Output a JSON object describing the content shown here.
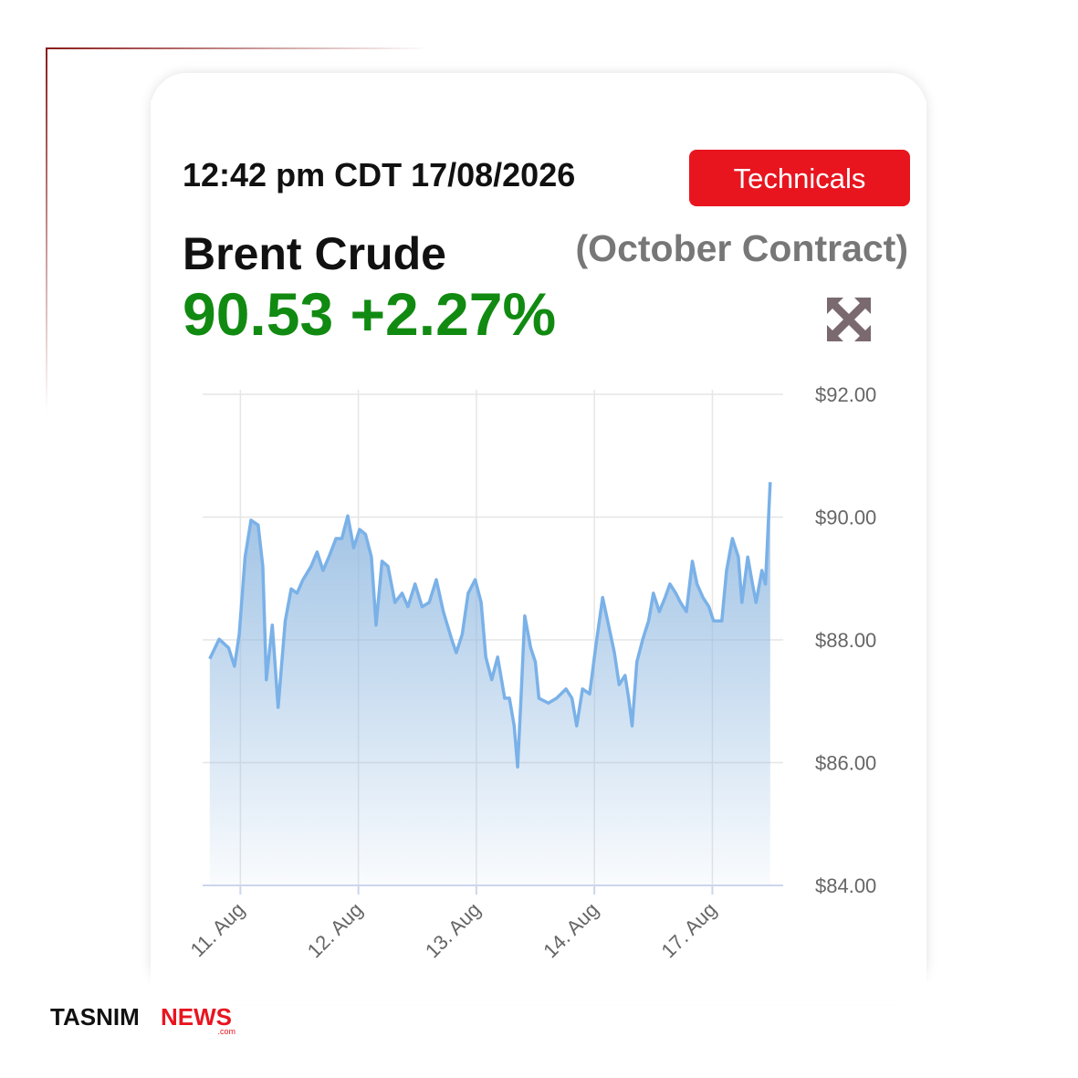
{
  "widget": {
    "timestamp": "12:42 pm CDT 17/08/2026",
    "button": "Technicals",
    "instrument": "Brent Crude",
    "contract": "(October Contract)",
    "price": "90.53",
    "change": "+2.27%"
  },
  "logo": {
    "brand": "TASNIM",
    "news": "NEWS",
    "domain": ".com"
  },
  "chart_data": {
    "type": "area",
    "color": "#7ab1e8",
    "grid": true,
    "x": [
      -0.26,
      -0.18,
      -0.1,
      -0.05,
      -0.01,
      0.04,
      0.09,
      0.15,
      0.19,
      0.22,
      0.27,
      0.32,
      0.38,
      0.43,
      0.48,
      0.53,
      0.6,
      0.65,
      0.7,
      0.75,
      0.81,
      0.86,
      0.91,
      0.96,
      1.01,
      1.06,
      1.11,
      1.15,
      1.2,
      1.25,
      1.31,
      1.37,
      1.42,
      1.48,
      1.54,
      1.6,
      1.66,
      1.72,
      1.79,
      1.83,
      1.88,
      1.93,
      1.99,
      2.04,
      2.08,
      2.13,
      2.18,
      2.24,
      2.28,
      2.32,
      2.35,
      2.38,
      2.41,
      2.46,
      2.5,
      2.53,
      2.61,
      2.68,
      2.76,
      2.81,
      2.85,
      2.9,
      2.96,
      3.01,
      3.07,
      3.12,
      3.17,
      3.21,
      3.26,
      3.29,
      3.32,
      3.36,
      3.41,
      3.46,
      3.5,
      3.55,
      3.6,
      3.64,
      3.69,
      3.73,
      3.78,
      3.83,
      3.87,
      3.92,
      3.97,
      4.01,
      4.08,
      4.12,
      4.17,
      4.22,
      4.25,
      4.3,
      4.34,
      4.37,
      4.42,
      4.45,
      4.49
    ],
    "values": [
      87.69,
      88.01,
      87.87,
      87.57,
      88.09,
      89.35,
      89.95,
      89.87,
      89.2,
      87.35,
      88.24,
      86.9,
      88.31,
      88.83,
      88.76,
      88.98,
      89.2,
      89.43,
      89.13,
      89.35,
      89.65,
      89.65,
      90.02,
      89.5,
      89.8,
      89.72,
      89.35,
      88.24,
      89.28,
      89.2,
      88.61,
      88.76,
      88.54,
      88.91,
      88.54,
      88.61,
      88.98,
      88.46,
      88.01,
      87.79,
      88.09,
      88.76,
      88.98,
      88.61,
      87.72,
      87.35,
      87.72,
      87.05,
      87.05,
      86.6,
      85.93,
      87.12,
      88.39,
      87.87,
      87.64,
      87.05,
      86.97,
      87.05,
      87.2,
      87.05,
      86.6,
      87.2,
      87.12,
      87.87,
      88.69,
      88.24,
      87.79,
      87.27,
      87.42,
      87.05,
      86.6,
      87.64,
      88.01,
      88.31,
      88.76,
      88.46,
      88.69,
      88.91,
      88.76,
      88.61,
      88.46,
      89.28,
      88.91,
      88.69,
      88.54,
      88.31,
      88.31,
      89.13,
      89.65,
      89.35,
      88.61,
      89.35,
      88.91,
      88.61,
      89.13,
      88.91,
      90.57
    ],
    "xlim": [
      -0.32,
      4.6
    ],
    "xticks": [
      {
        "value": 0,
        "label": "11. Aug"
      },
      {
        "value": 1,
        "label": "12. Aug"
      },
      {
        "value": 2,
        "label": "13. Aug"
      },
      {
        "value": 3,
        "label": "14. Aug"
      },
      {
        "value": 4,
        "label": "17. Aug"
      }
    ],
    "ylim": [
      84,
      92
    ],
    "yticks": [
      {
        "value": 84,
        "label": "$84.00"
      },
      {
        "value": 86,
        "label": "$86.00"
      },
      {
        "value": 88,
        "label": "$88.00"
      },
      {
        "value": 90,
        "label": "$90.00"
      },
      {
        "value": 92,
        "label": "$92.00"
      }
    ]
  }
}
